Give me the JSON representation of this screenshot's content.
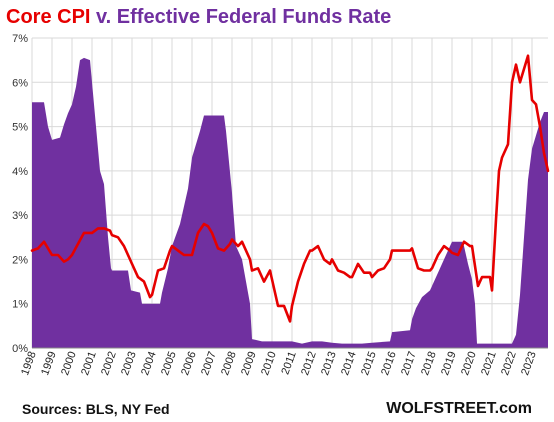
{
  "title": {
    "part1": "Core CPI",
    "sep": " v. ",
    "part2": "Effective Federal Funds Rate",
    "color1": "#e60000",
    "color2": "#7030a0"
  },
  "source": "Sources: BLS, NY Fed",
  "brand": "WOLFSTREET.com",
  "chart_data": {
    "type": "area",
    "title": "Core CPI v. Effective Federal Funds Rate",
    "xlabel": "",
    "ylabel": "",
    "ylim": [
      0,
      7
    ],
    "xlim": [
      1998.0,
      2023.8
    ],
    "grid": true,
    "yticks": [
      "0%",
      "1%",
      "2%",
      "3%",
      "4%",
      "5%",
      "6%",
      "7%"
    ],
    "xticks": [
      "1998",
      "1999",
      "2000",
      "2001",
      "2002",
      "2003",
      "2004",
      "2005",
      "2006",
      "2007",
      "2008",
      "2009",
      "2010",
      "2011",
      "2012",
      "2013",
      "2014",
      "2015",
      "2016",
      "2017",
      "2018",
      "2019",
      "2020",
      "2021",
      "2022",
      "2023"
    ],
    "series": [
      {
        "name": "Effective Federal Funds Rate",
        "kind": "area",
        "color": "#7030a0",
        "x": [
          1998.0,
          1998.6,
          1998.8,
          1999.0,
          1999.4,
          1999.6,
          1999.8,
          2000.0,
          2000.2,
          2000.4,
          2000.6,
          2000.9,
          2001.0,
          2001.2,
          2001.4,
          2001.6,
          2001.8,
          2001.95,
          2002.0,
          2002.8,
          2002.95,
          2003.4,
          2003.5,
          2004.4,
          2004.5,
          2004.8,
          2005.0,
          2005.4,
          2005.8,
          2006.0,
          2006.4,
          2006.6,
          2007.6,
          2007.7,
          2008.0,
          2008.2,
          2008.5,
          2008.9,
          2009.0,
          2009.5,
          2010.0,
          2010.5,
          2011.0,
          2011.5,
          2012.0,
          2012.5,
          2013.0,
          2013.5,
          2014.0,
          2014.5,
          2015.0,
          2015.9,
          2016.0,
          2016.9,
          2017.0,
          2017.2,
          2017.5,
          2017.9,
          2018.0,
          2018.3,
          2018.5,
          2018.9,
          2019.0,
          2019.5,
          2019.6,
          2019.8,
          2020.0,
          2020.15,
          2020.25,
          2020.5,
          2021.0,
          2021.5,
          2022.0,
          2022.2,
          2022.4,
          2022.6,
          2022.8,
          2023.0,
          2023.2,
          2023.4,
          2023.6,
          2023.8
        ],
        "values": [
          5.55,
          5.55,
          5.0,
          4.7,
          4.75,
          5.05,
          5.3,
          5.5,
          5.9,
          6.5,
          6.55,
          6.5,
          6.0,
          5.0,
          4.0,
          3.7,
          2.5,
          1.8,
          1.75,
          1.75,
          1.3,
          1.25,
          1.0,
          1.0,
          1.25,
          1.8,
          2.3,
          2.8,
          3.6,
          4.3,
          4.9,
          5.25,
          5.25,
          4.9,
          3.5,
          2.3,
          2.0,
          1.0,
          0.2,
          0.15,
          0.15,
          0.15,
          0.15,
          0.1,
          0.15,
          0.15,
          0.12,
          0.1,
          0.1,
          0.1,
          0.12,
          0.15,
          0.36,
          0.4,
          0.65,
          0.9,
          1.15,
          1.3,
          1.4,
          1.7,
          1.9,
          2.3,
          2.4,
          2.4,
          2.3,
          1.9,
          1.55,
          1.0,
          0.1,
          0.1,
          0.1,
          0.1,
          0.1,
          0.3,
          1.2,
          2.5,
          3.8,
          4.5,
          4.8,
          5.1,
          5.33,
          5.33
        ]
      },
      {
        "name": "Core CPI",
        "kind": "line",
        "color": "#e60000",
        "x": [
          1998.0,
          1998.3,
          1998.6,
          1999.0,
          1999.3,
          1999.6,
          1999.8,
          2000.0,
          2000.3,
          2000.6,
          2001.0,
          2001.3,
          2001.6,
          2001.9,
          2002.0,
          2002.3,
          2002.6,
          2002.9,
          2003.0,
          2003.3,
          2003.6,
          2003.9,
          2004.0,
          2004.3,
          2004.6,
          2004.9,
          2005.0,
          2005.3,
          2005.6,
          2005.9,
          2006.0,
          2006.3,
          2006.6,
          2006.8,
          2007.0,
          2007.3,
          2007.6,
          2007.9,
          2008.0,
          2008.3,
          2008.5,
          2008.9,
          2009.0,
          2009.3,
          2009.6,
          2009.9,
          2010.0,
          2010.3,
          2010.6,
          2010.9,
          2011.0,
          2011.3,
          2011.6,
          2011.9,
          2012.0,
          2012.3,
          2012.6,
          2012.9,
          2013.0,
          2013.3,
          2013.6,
          2013.9,
          2014.0,
          2014.3,
          2014.6,
          2014.9,
          2015.0,
          2015.3,
          2015.6,
          2015.9,
          2016.0,
          2016.3,
          2016.6,
          2016.9,
          2017.0,
          2017.3,
          2017.6,
          2017.9,
          2018.0,
          2018.3,
          2018.6,
          2018.9,
          2019.0,
          2019.3,
          2019.6,
          2019.9,
          2020.0,
          2020.3,
          2020.5,
          2020.9,
          2021.0,
          2021.2,
          2021.35,
          2021.5,
          2021.8,
          2022.0,
          2022.2,
          2022.4,
          2022.6,
          2022.8,
          2023.0,
          2023.2,
          2023.4,
          2023.6,
          2023.8
        ],
        "values": [
          2.2,
          2.25,
          2.4,
          2.1,
          2.1,
          1.95,
          2.0,
          2.1,
          2.35,
          2.6,
          2.6,
          2.7,
          2.7,
          2.65,
          2.55,
          2.5,
          2.3,
          2.0,
          1.9,
          1.6,
          1.5,
          1.15,
          1.2,
          1.75,
          1.8,
          2.2,
          2.3,
          2.2,
          2.1,
          2.1,
          2.1,
          2.6,
          2.8,
          2.75,
          2.6,
          2.25,
          2.2,
          2.35,
          2.45,
          2.3,
          2.4,
          2.0,
          1.75,
          1.8,
          1.5,
          1.75,
          1.55,
          0.95,
          0.95,
          0.6,
          0.95,
          1.5,
          1.9,
          2.2,
          2.2,
          2.3,
          2.0,
          1.9,
          2.0,
          1.75,
          1.7,
          1.6,
          1.6,
          1.9,
          1.7,
          1.7,
          1.6,
          1.75,
          1.8,
          2.0,
          2.2,
          2.2,
          2.2,
          2.2,
          2.25,
          1.8,
          1.75,
          1.75,
          1.8,
          2.1,
          2.3,
          2.2,
          2.15,
          2.1,
          2.4,
          2.3,
          2.3,
          1.4,
          1.6,
          1.6,
          1.3,
          2.9,
          4.0,
          4.3,
          4.6,
          6.0,
          6.4,
          6.0,
          6.3,
          6.6,
          5.6,
          5.5,
          5.0,
          4.4,
          4.0
        ]
      }
    ]
  }
}
